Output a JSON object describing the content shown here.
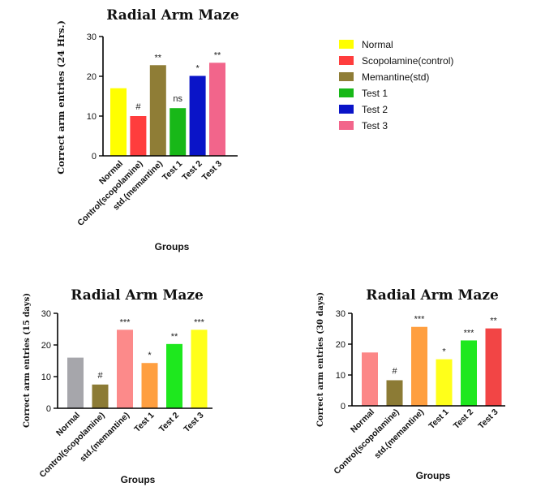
{
  "chart_data": [
    {
      "type": "bar",
      "title": "Radial Arm Maze",
      "ylabel": "Correct arm entries (24 Hrs.)",
      "xlabel": "Groups",
      "ylim": [
        0,
        30
      ],
      "yticks": [
        "0",
        "10",
        "20",
        "30"
      ],
      "categories": [
        "Normal",
        "Control(scopolamine)",
        "std.(memantine)",
        "Test 1",
        "Test 2",
        "Test 3"
      ],
      "values": [
        17,
        10,
        22.8,
        12,
        20.1,
        23.4
      ],
      "data_labels": [
        "",
        "#",
        "**",
        "ns",
        "*",
        "**"
      ],
      "colors": [
        "#ffff00",
        "#ff3d3d",
        "#8f7d36",
        "#18b818",
        "#0a14c8",
        "#f2658b"
      ],
      "legend": {
        "position": "right",
        "entries": [
          "Normal",
          "Scopolamine(control)",
          "Memantine(std)",
          "Test 1",
          "Test 2",
          "Test 3"
        ]
      }
    },
    {
      "type": "bar",
      "title": "Radial Arm Maze",
      "ylabel": "Correct arm entries (15 days)",
      "xlabel": "Groups",
      "ylim": [
        0,
        30
      ],
      "yticks": [
        "0",
        "10",
        "20",
        "30"
      ],
      "categories": [
        "Normal",
        "Control(scopolamine)",
        "std.(memantine)",
        "Test 1",
        "Test 2",
        "Test 3"
      ],
      "values": [
        16,
        7.5,
        24.8,
        14.3,
        20.3,
        24.8
      ],
      "data_labels": [
        "",
        "#",
        "***",
        "*",
        "**",
        "***"
      ],
      "colors": [
        "#a6a6ab",
        "#8c7b35",
        "#fc8a8a",
        "#ff9f40",
        "#1ee81e",
        "#ffff1a"
      ]
    },
    {
      "type": "bar",
      "title": "Radial Arm Maze",
      "ylabel": "Correct arm entries (30 days)",
      "xlabel": "Groups",
      "ylim": [
        0,
        30
      ],
      "yticks": [
        "0",
        "10",
        "20",
        "30"
      ],
      "categories": [
        "Normal",
        "Control(scopolamine)",
        "std.(memantine)",
        "Test 1",
        "Test 2",
        "Test 3"
      ],
      "values": [
        17.3,
        8.3,
        25.6,
        15.1,
        21.2,
        25.1
      ],
      "data_labels": [
        "",
        "#",
        "***",
        "*",
        "***",
        "**"
      ],
      "colors": [
        "#fc8787",
        "#8c7b35",
        "#ff9f40",
        "#ffff1a",
        "#1ee81e",
        "#f24545"
      ]
    }
  ]
}
